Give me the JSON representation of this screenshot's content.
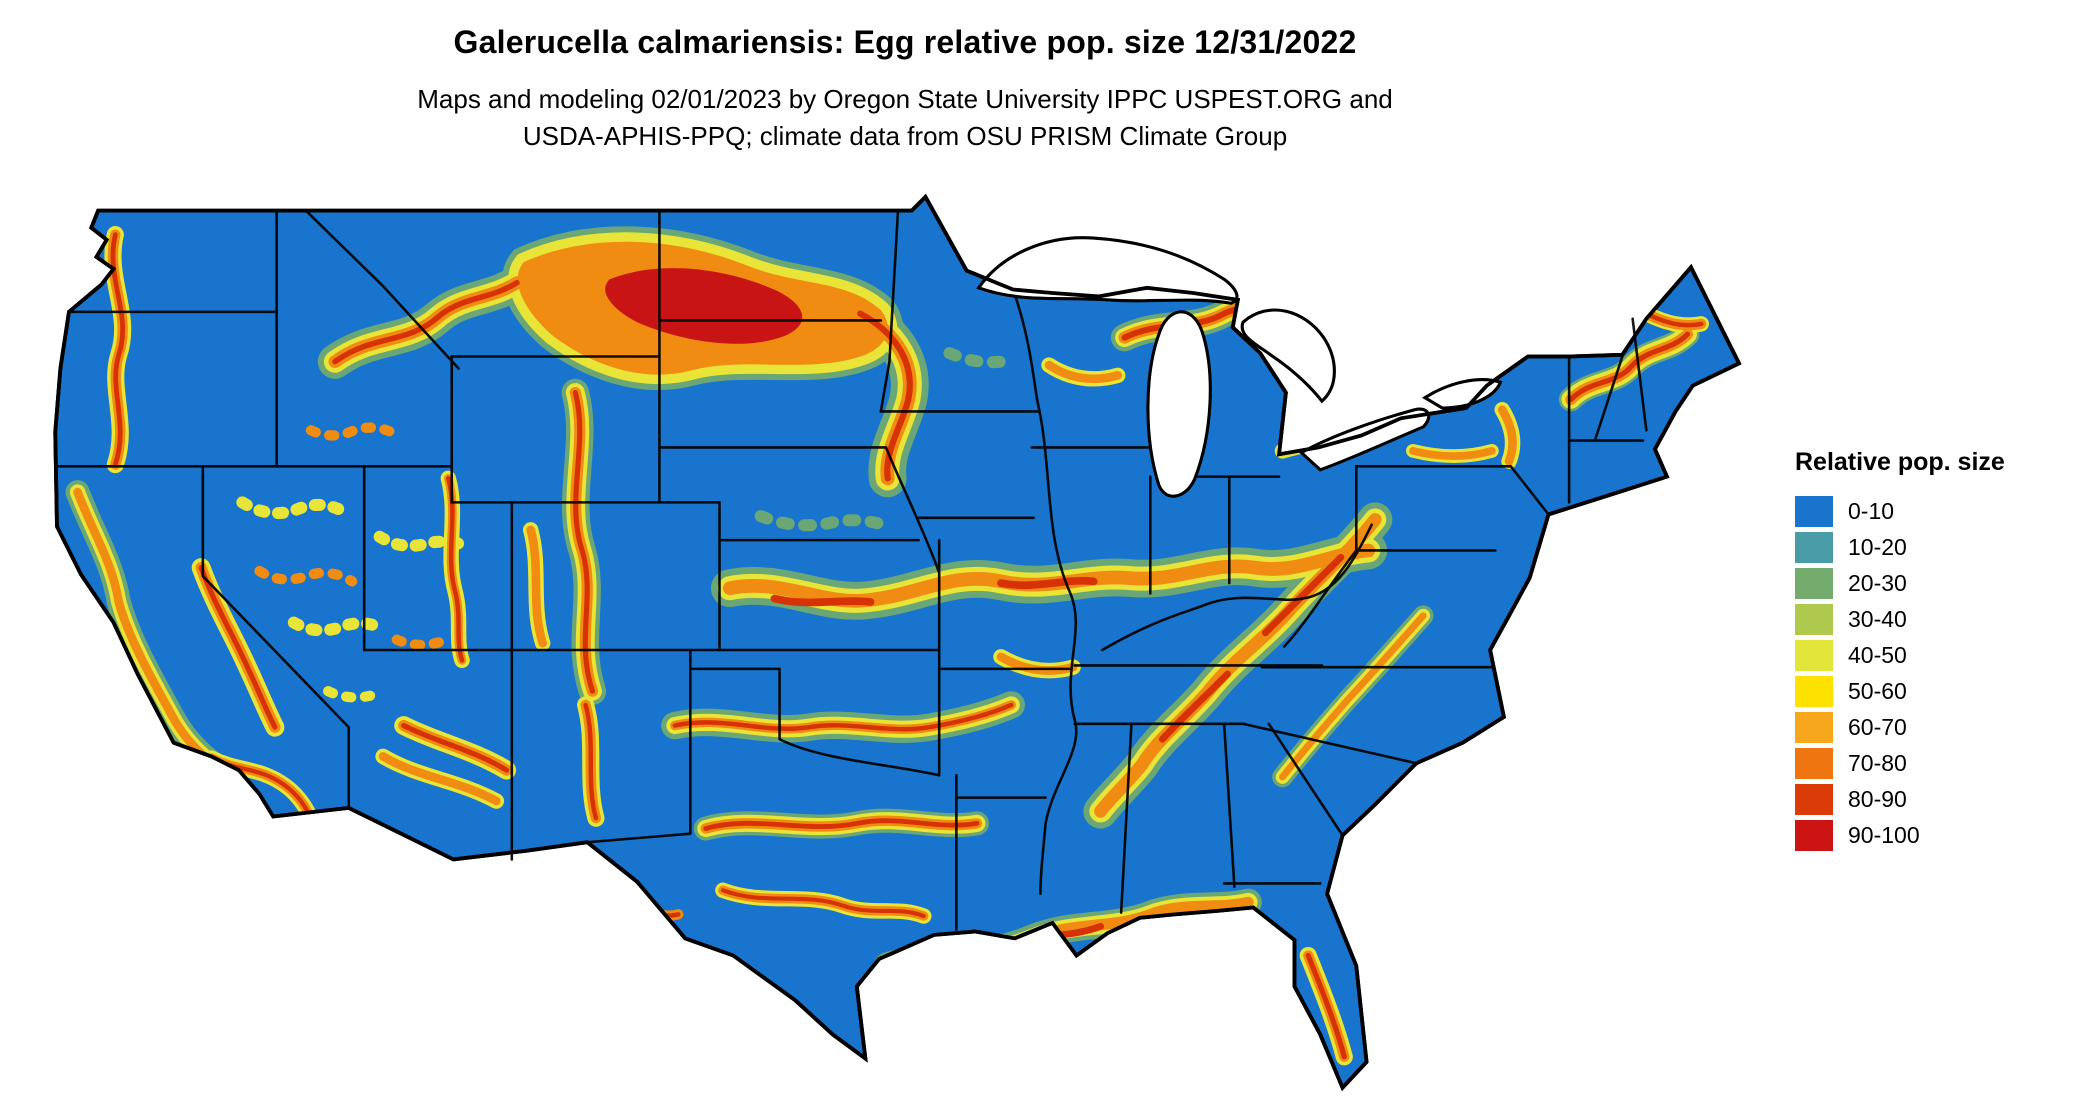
{
  "header": {
    "title": "Galerucella calmariensis: Egg relative pop. size 12/31/2022",
    "subtitle_line1": "Maps and modeling 02/01/2023 by Oregon State University IPPC USPEST.ORG and",
    "subtitle_line2": "USDA-APHIS-PPQ; climate data from OSU PRISM Climate Group",
    "subtitle_full": "Maps and modeling 02/01/2023 by Oregon State University IPPC USPEST.ORG and USDA-APHIS-PPQ; climate data from OSU PRISM Climate Group"
  },
  "map": {
    "base_color": "#1874CD",
    "state_border_color": "#000000",
    "lake_color": "#FFFFFF"
  },
  "legend": {
    "title": "Relative pop. size",
    "items": [
      {
        "label": "0-10",
        "color": "#1874CD"
      },
      {
        "label": "10-20",
        "color": "#4A9BA8"
      },
      {
        "label": "20-30",
        "color": "#74AC6E"
      },
      {
        "label": "30-40",
        "color": "#AFC94E"
      },
      {
        "label": "40-50",
        "color": "#E2E53A"
      },
      {
        "label": "50-60",
        "color": "#FFE100"
      },
      {
        "label": "60-70",
        "color": "#F7A71B"
      },
      {
        "label": "70-80",
        "color": "#EE7510"
      },
      {
        "label": "80-90",
        "color": "#DB3B07"
      },
      {
        "label": "90-100",
        "color": "#CC1414"
      }
    ]
  }
}
